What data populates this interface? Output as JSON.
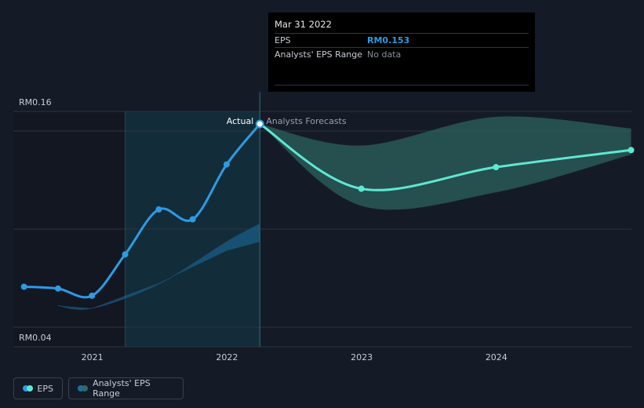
{
  "chart_data": {
    "type": "line",
    "y_axis_labels": [
      "RM0.16",
      "RM0.04"
    ],
    "x_ticks": [
      "2021",
      "2022",
      "2023",
      "2024"
    ],
    "divider_labels": {
      "actual": "Actual",
      "forecast": "Analysts Forecasts"
    },
    "series": [
      {
        "name": "EPS",
        "color": "#2d9be4",
        "kind": "actual",
        "points": [
          [
            "2020-06-30",
            0.0625
          ],
          [
            "2020-09-30",
            0.0615
          ],
          [
            "2020-12-31",
            0.0575
          ],
          [
            "2021-03-31",
            0.0805
          ],
          [
            "2021-06-30",
            0.1055
          ],
          [
            "2021-09-30",
            0.1
          ],
          [
            "2021-12-31",
            0.1305
          ],
          [
            "2022-03-31",
            0.153
          ]
        ]
      },
      {
        "name": "EPS",
        "color": "#5ee8d3",
        "kind": "forecast",
        "points": [
          [
            "2022-03-31",
            0.153
          ],
          [
            "2022-12-31",
            0.117
          ],
          [
            "2023-12-31",
            0.129
          ],
          [
            "2024-12-31",
            0.1385
          ]
        ]
      }
    ],
    "forecast_range": {
      "name": "Analysts' EPS Range",
      "color": "#2f6b66",
      "high": [
        [
          "2022-03-31",
          0.153
        ],
        [
          "2022-12-31",
          0.141
        ],
        [
          "2023-12-31",
          0.157
        ],
        [
          "2024-12-31",
          0.1505
        ]
      ],
      "low": [
        [
          "2022-03-31",
          0.153
        ],
        [
          "2022-12-31",
          0.1075
        ],
        [
          "2023-12-31",
          0.115
        ],
        [
          "2024-12-31",
          0.136
        ]
      ]
    },
    "historical_range": {
      "color": "#1b6fa3",
      "high": [
        [
          "2020-09-30",
          0.052
        ],
        [
          "2020-12-31",
          0.0505
        ],
        [
          "2021-06-30",
          0.064
        ],
        [
          "2021-12-31",
          0.0875
        ],
        [
          "2022-03-31",
          0.0975
        ]
      ],
      "low": [
        [
          "2020-09-30",
          0.052
        ],
        [
          "2020-12-31",
          0.0505
        ],
        [
          "2021-06-30",
          0.0645
        ],
        [
          "2021-12-31",
          0.0825
        ],
        [
          "2022-03-31",
          0.0875
        ]
      ]
    },
    "past_shade_start": "2021-03-31",
    "divider_date": "2022-03-31",
    "ylim": [
      0.04,
      0.16
    ]
  },
  "tooltip": {
    "date": "Mar 31 2022",
    "rows": [
      {
        "label": "EPS",
        "value": "RM0.153"
      },
      {
        "label": "Analysts' EPS Range",
        "value": "No data"
      }
    ]
  },
  "legend": [
    {
      "label": "EPS",
      "colors": [
        "#2d9be4",
        "#5ee8d3"
      ]
    },
    {
      "label": "Analysts' EPS Range",
      "colors": [
        "#1b6fa3",
        "#2f6b66"
      ]
    }
  ]
}
